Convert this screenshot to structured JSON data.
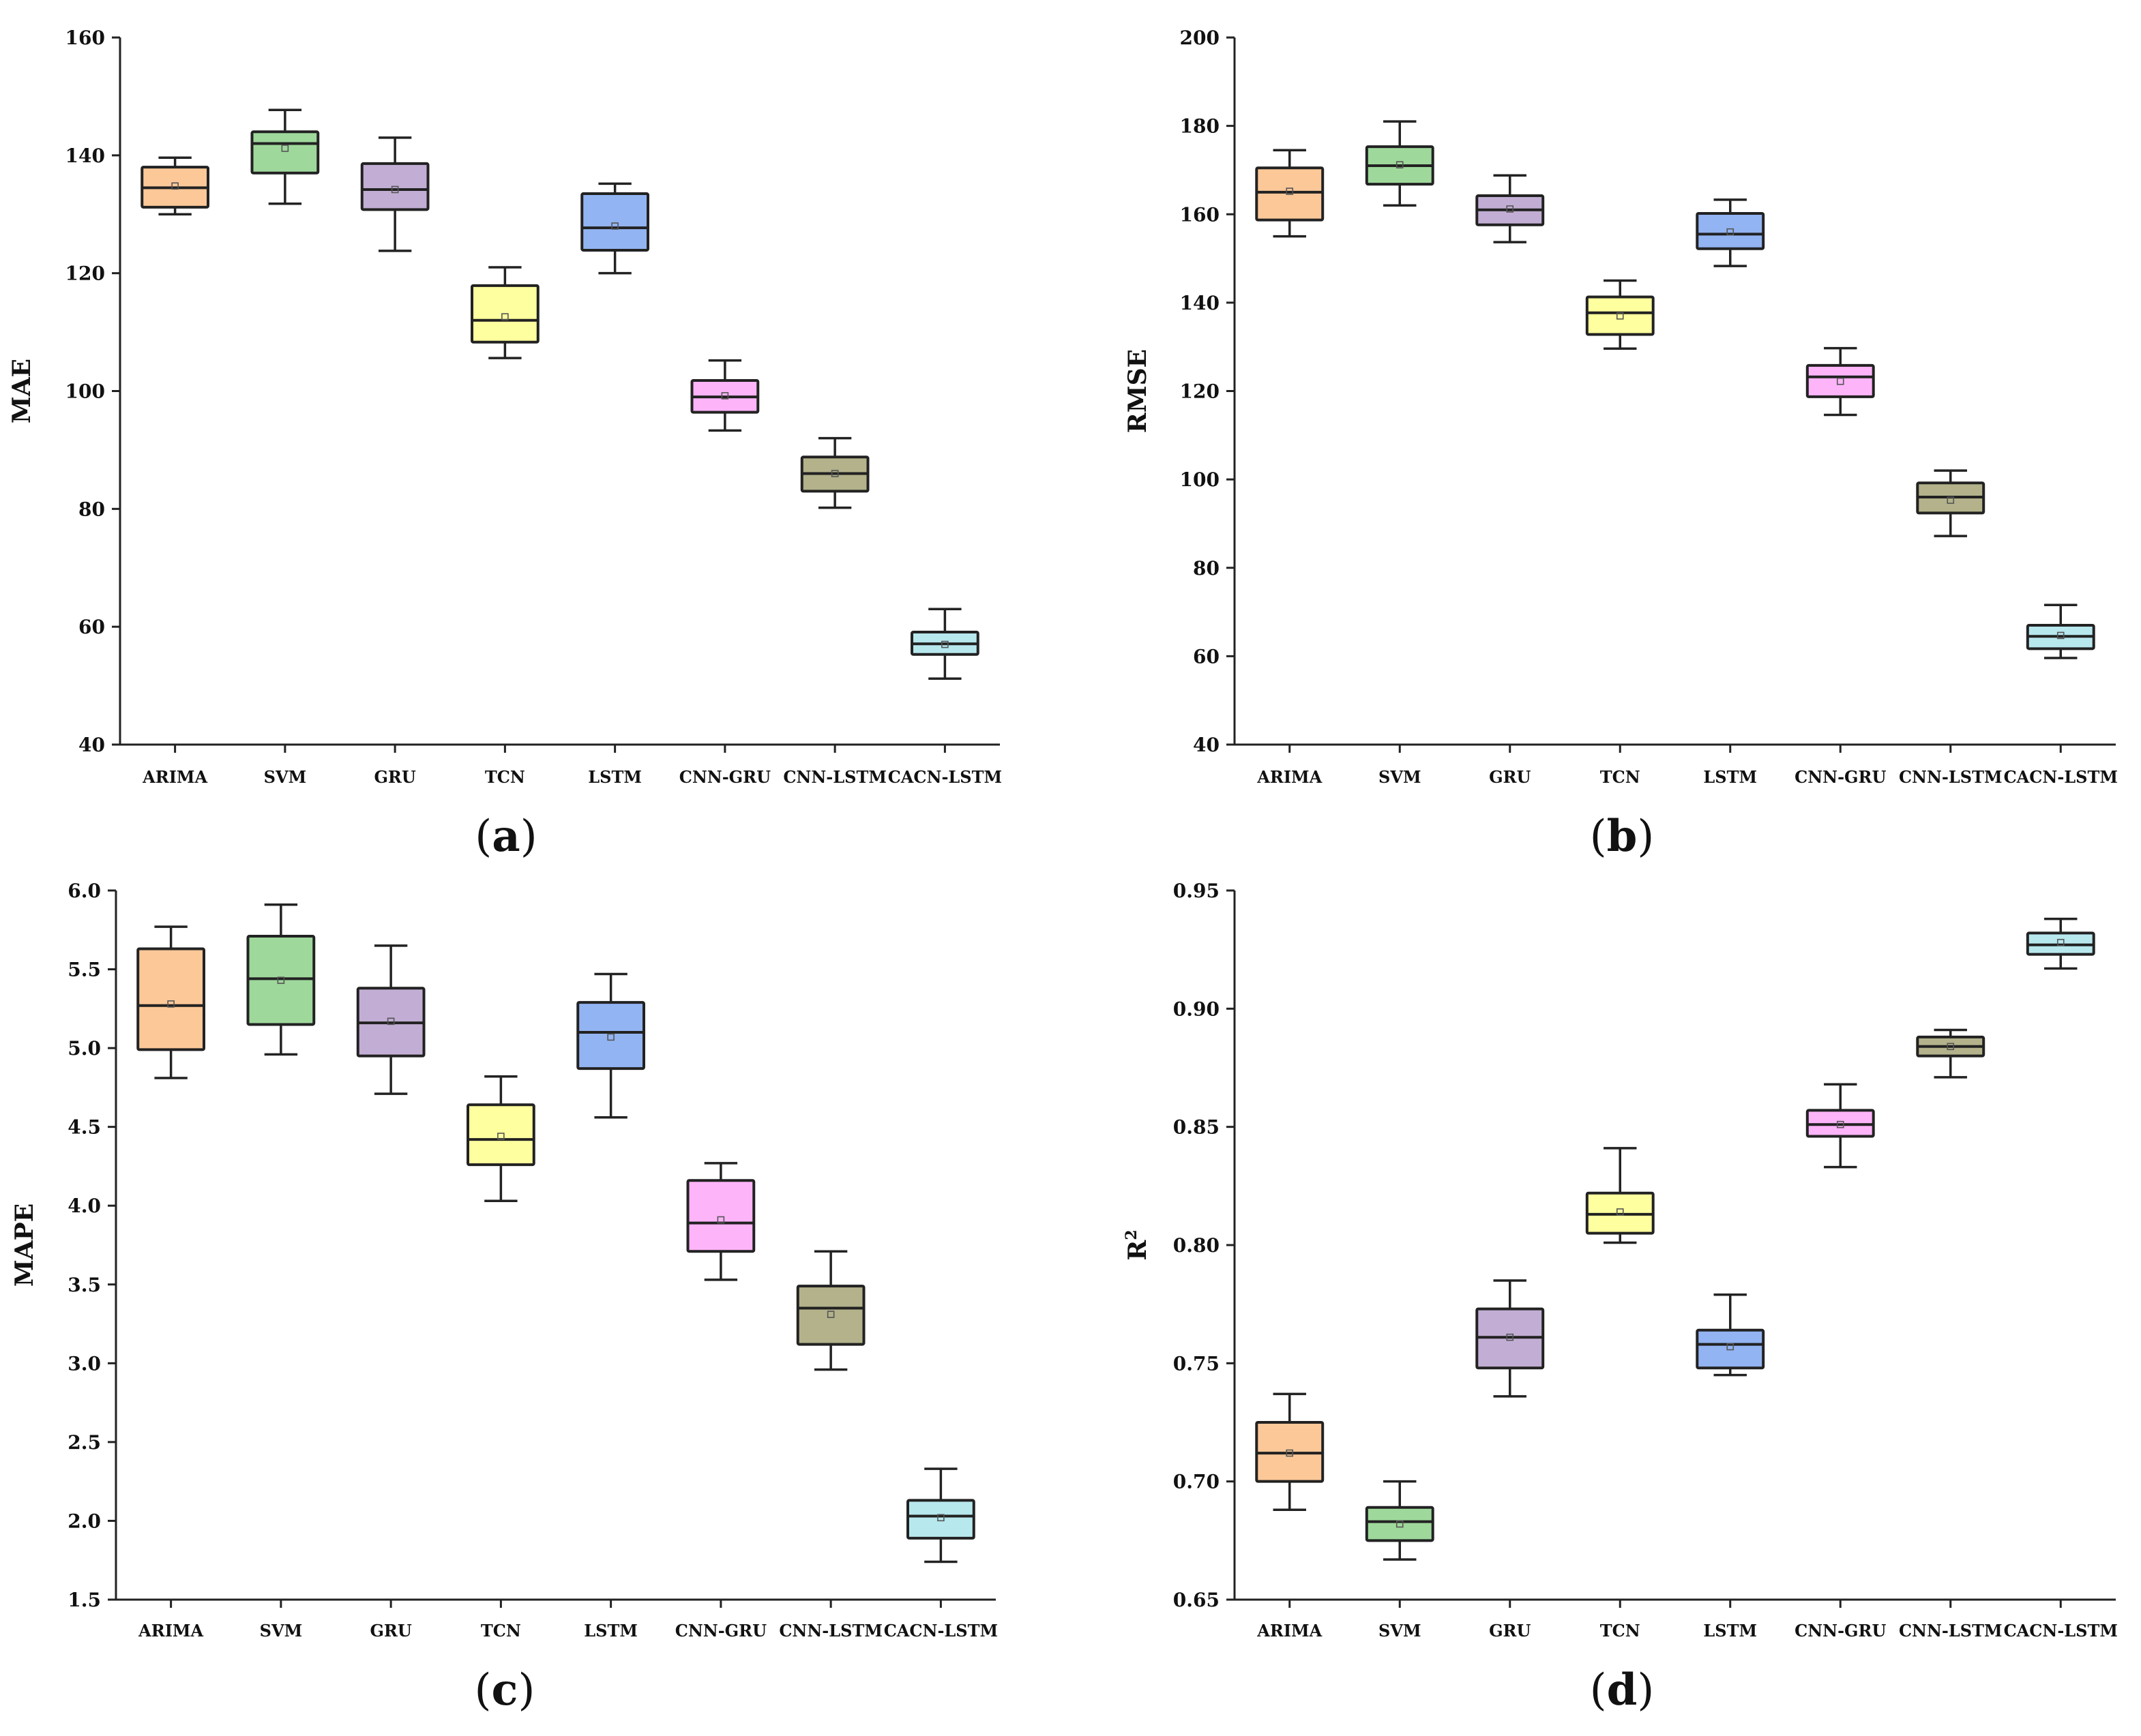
{
  "colors": {
    "ARIMA": "#fcc898",
    "SVM": "#9fd89b",
    "GRU": "#c2aed4",
    "TCN": "#feff9e",
    "LSTM": "#93b4f2",
    "CNN-GRU": "#fdb4f9",
    "CNN-LSTM": "#b3b28b",
    "CACN-LSTM": "#b7e8ee"
  },
  "chart_data": [
    {
      "type": "box",
      "panel_label": "(a)",
      "ylabel": "MAE",
      "ylim": [
        40,
        160
      ],
      "yticks": [
        "40",
        "60",
        "80",
        "100",
        "120",
        "140",
        "160"
      ],
      "categories": [
        "ARIMA",
        "SVM",
        "GRU",
        "TCN",
        "LSTM",
        "CNN-GRU",
        "CNN-LSTM",
        "CACN-LSTM"
      ],
      "boxes": [
        {
          "min": 130,
          "q1": 131.2,
          "median": 134.5,
          "q3": 138,
          "max": 139.6,
          "mean": 134.8
        },
        {
          "min": 131.8,
          "q1": 137,
          "median": 142,
          "q3": 144,
          "max": 147.7,
          "mean": 141.2
        },
        {
          "min": 123.8,
          "q1": 130.8,
          "median": 134.2,
          "q3": 138.6,
          "max": 143,
          "mean": 134.2
        },
        {
          "min": 105.6,
          "q1": 108.3,
          "median": 112,
          "q3": 117.9,
          "max": 121,
          "mean": 112.6
        },
        {
          "min": 120,
          "q1": 123.9,
          "median": 127.7,
          "q3": 133.5,
          "max": 135.2,
          "mean": 128
        },
        {
          "min": 93.3,
          "q1": 96.4,
          "median": 99,
          "q3": 101.8,
          "max": 105.2,
          "mean": 99.2
        },
        {
          "min": 80.2,
          "q1": 83,
          "median": 86,
          "q3": 88.8,
          "max": 92,
          "mean": 86
        },
        {
          "min": 51.2,
          "q1": 55.3,
          "median": 57.1,
          "q3": 59.1,
          "max": 63,
          "mean": 57
        }
      ]
    },
    {
      "type": "box",
      "panel_label": "(b)",
      "ylabel": "RMSE",
      "ylim": [
        40,
        200
      ],
      "yticks": [
        "40",
        "60",
        "80",
        "100",
        "120",
        "140",
        "160",
        "180",
        "200"
      ],
      "categories": [
        "ARIMA",
        "SVM",
        "GRU",
        "TCN",
        "LSTM",
        "CNN-GRU",
        "CNN-LSTM",
        "CACN-LSTM"
      ],
      "boxes": [
        {
          "min": 155,
          "q1": 158.7,
          "median": 165,
          "q3": 170.5,
          "max": 174.5,
          "mean": 165.2
        },
        {
          "min": 162,
          "q1": 166.8,
          "median": 171,
          "q3": 175.3,
          "max": 181,
          "mean": 171.2
        },
        {
          "min": 153.7,
          "q1": 157.6,
          "median": 161,
          "q3": 164.2,
          "max": 168.8,
          "mean": 161.2
        },
        {
          "min": 129.6,
          "q1": 132.8,
          "median": 137.7,
          "q3": 141.3,
          "max": 145,
          "mean": 137
        },
        {
          "min": 148.3,
          "q1": 152.2,
          "median": 155.5,
          "q3": 160.2,
          "max": 163.3,
          "mean": 156
        },
        {
          "min": 114.6,
          "q1": 118.7,
          "median": 123.2,
          "q3": 125.8,
          "max": 129.7,
          "mean": 122.2
        },
        {
          "min": 87.2,
          "q1": 92.4,
          "median": 96,
          "q3": 99.2,
          "max": 102,
          "mean": 95.3
        },
        {
          "min": 59.6,
          "q1": 61.7,
          "median": 64.5,
          "q3": 67,
          "max": 71.6,
          "mean": 64.7
        }
      ]
    },
    {
      "type": "box",
      "panel_label": "(c)",
      "ylabel": "MAPE",
      "ylim": [
        1.5,
        6.0
      ],
      "yticks": [
        "1.5",
        "2.0",
        "2.5",
        "3.0",
        "3.5",
        "4.0",
        "4.5",
        "5.0",
        "5.5",
        "6.0"
      ],
      "categories": [
        "ARIMA",
        "SVM",
        "GRU",
        "TCN",
        "LSTM",
        "CNN-GRU",
        "CNN-LSTM",
        "CACN-LSTM"
      ],
      "boxes": [
        {
          "min": 4.81,
          "q1": 4.99,
          "median": 5.27,
          "q3": 5.63,
          "max": 5.77,
          "mean": 5.28
        },
        {
          "min": 4.96,
          "q1": 5.15,
          "median": 5.44,
          "q3": 5.71,
          "max": 5.91,
          "mean": 5.43
        },
        {
          "min": 4.71,
          "q1": 4.95,
          "median": 5.16,
          "q3": 5.38,
          "max": 5.65,
          "mean": 5.17
        },
        {
          "min": 4.03,
          "q1": 4.26,
          "median": 4.42,
          "q3": 4.64,
          "max": 4.82,
          "mean": 4.44
        },
        {
          "min": 4.56,
          "q1": 4.87,
          "median": 5.1,
          "q3": 5.29,
          "max": 5.47,
          "mean": 5.07
        },
        {
          "min": 3.53,
          "q1": 3.71,
          "median": 3.89,
          "q3": 4.16,
          "max": 4.27,
          "mean": 3.91
        },
        {
          "min": 2.96,
          "q1": 3.12,
          "median": 3.35,
          "q3": 3.49,
          "max": 3.71,
          "mean": 3.31
        },
        {
          "min": 1.74,
          "q1": 1.89,
          "median": 2.03,
          "q3": 2.13,
          "max": 2.33,
          "mean": 2.02
        }
      ]
    },
    {
      "type": "box",
      "panel_label": "(d)",
      "ylabel": "R²",
      "ylim": [
        0.65,
        0.95
      ],
      "yticks": [
        "0.65",
        "0.70",
        "0.75",
        "0.80",
        "0.85",
        "0.90",
        "0.95"
      ],
      "categories": [
        "ARIMA",
        "SVM",
        "GRU",
        "TCN",
        "LSTM",
        "CNN-GRU",
        "CNN-LSTM",
        "CACN-LSTM"
      ],
      "boxes": [
        {
          "min": 0.688,
          "q1": 0.7,
          "median": 0.712,
          "q3": 0.725,
          "max": 0.737,
          "mean": 0.712
        },
        {
          "min": 0.667,
          "q1": 0.675,
          "median": 0.683,
          "q3": 0.689,
          "max": 0.7,
          "mean": 0.682
        },
        {
          "min": 0.736,
          "q1": 0.748,
          "median": 0.761,
          "q3": 0.773,
          "max": 0.785,
          "mean": 0.761
        },
        {
          "min": 0.801,
          "q1": 0.805,
          "median": 0.813,
          "q3": 0.822,
          "max": 0.841,
          "mean": 0.814
        },
        {
          "min": 0.745,
          "q1": 0.748,
          "median": 0.758,
          "q3": 0.764,
          "max": 0.779,
          "mean": 0.757
        },
        {
          "min": 0.833,
          "q1": 0.846,
          "median": 0.851,
          "q3": 0.857,
          "max": 0.868,
          "mean": 0.851
        },
        {
          "min": 0.871,
          "q1": 0.88,
          "median": 0.884,
          "q3": 0.888,
          "max": 0.891,
          "mean": 0.884
        },
        {
          "min": 0.917,
          "q1": 0.923,
          "median": 0.927,
          "q3": 0.932,
          "max": 0.938,
          "mean": 0.928
        }
      ]
    }
  ]
}
